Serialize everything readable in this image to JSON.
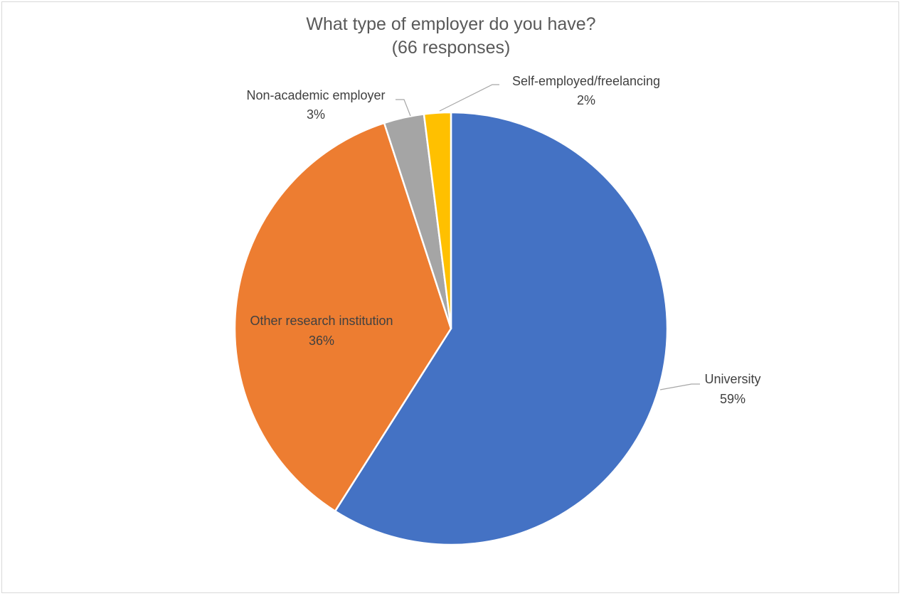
{
  "chart_data": {
    "type": "pie",
    "title": "What type of employer do you have?",
    "subtitle": "(66 responses)",
    "categories": [
      "University",
      "Other research institution",
      "Non-academic employer",
      "Self-employed/freelancing"
    ],
    "values": [
      59,
      36,
      3,
      2
    ],
    "value_labels": [
      "59%",
      "36%",
      "3%",
      "2%"
    ],
    "colors": [
      "#4472c4",
      "#ed7d31",
      "#a5a5a5",
      "#ffc000"
    ],
    "start": "12 o'clock",
    "direction": "clockwise"
  }
}
